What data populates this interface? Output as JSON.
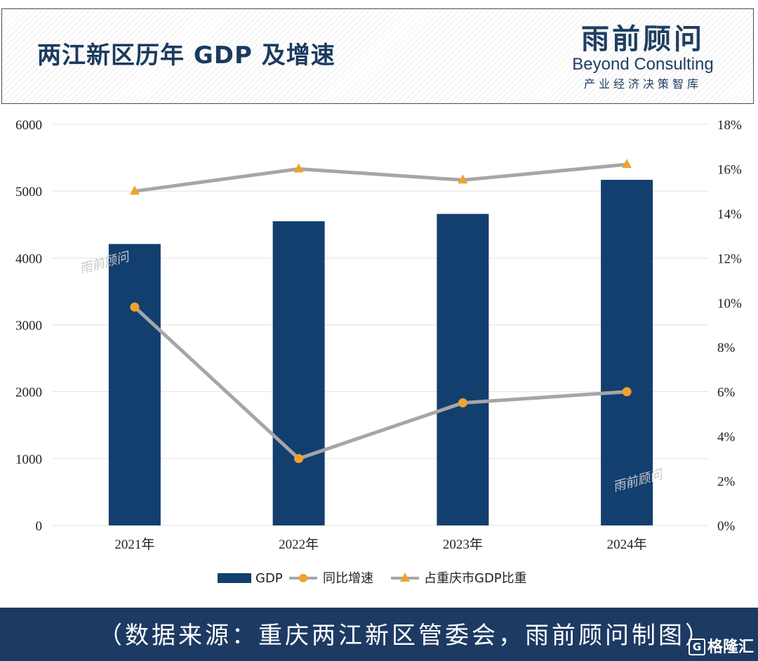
{
  "header": {
    "title": "两江新区历年 GDP 及增速",
    "logo_cn": "雨前顾问",
    "logo_en": "Beyond Consulting",
    "logo_sub": "产业经济决策智库"
  },
  "watermark": "雨前顾问",
  "footer": {
    "source": "（数据来源：重庆两江新区管委会，雨前顾问制图）",
    "badge": "格隆汇",
    "badge_icon": "G"
  },
  "colors": {
    "bar": "#133f6e",
    "line": "#a6a6a6",
    "marker_circle": "#f0a22e",
    "marker_triangle": "#f0a22e",
    "grid": "#e3e3e3",
    "footer_bg": "#1d3a63"
  },
  "chart_data": {
    "type": "bar",
    "categories": [
      "2021年",
      "2022年",
      "2023年",
      "2024年"
    ],
    "series": [
      {
        "name": "GDP",
        "type": "bar",
        "axis": "left",
        "values": [
          4210,
          4550,
          4660,
          5170
        ]
      },
      {
        "name": "同比增速",
        "type": "line",
        "marker": "circle",
        "axis": "right",
        "values": [
          9.8,
          3.0,
          5.5,
          6.0
        ]
      },
      {
        "name": "占重庆市GDP比重",
        "type": "line",
        "marker": "triangle",
        "axis": "right",
        "values": [
          15.0,
          16.0,
          15.5,
          16.2
        ]
      }
    ],
    "y_left": {
      "min": 0,
      "max": 6000,
      "ticks": [
        "0",
        "1000",
        "2000",
        "3000",
        "4000",
        "5000",
        "6000"
      ]
    },
    "y_right": {
      "min": 0,
      "max": 18,
      "ticks": [
        "0%",
        "2%",
        "4%",
        "6%",
        "8%",
        "10%",
        "12%",
        "14%",
        "16%",
        "18%"
      ]
    },
    "grid": true,
    "legend_position": "bottom"
  }
}
